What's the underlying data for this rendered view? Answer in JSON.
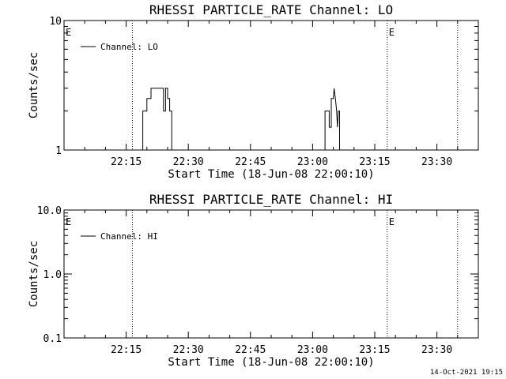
{
  "footer": {
    "timestamp": "14-Oct-2021 19:15"
  },
  "colors": {
    "background": "#ffffff",
    "foreground": "#000000"
  },
  "chart_data": [
    {
      "type": "line",
      "title": "RHESSI PARTICLE_RATE Channel: LO",
      "xlabel": "Start Time (18-Jun-08 22:00:10)",
      "ylabel": "Counts/sec",
      "yscale": "log",
      "xlim_minutes": [
        0,
        100
      ],
      "ylim": [
        1,
        10
      ],
      "xticks": [
        {
          "value": 15,
          "label": "22:15"
        },
        {
          "value": 30,
          "label": "22:30"
        },
        {
          "value": 45,
          "label": "22:45"
        },
        {
          "value": 60,
          "label": "23:00"
        },
        {
          "value": 75,
          "label": "23:15"
        },
        {
          "value": 90,
          "label": "23:30"
        }
      ],
      "yticks": [
        {
          "value": 1,
          "label": "1"
        },
        {
          "value": 10,
          "label": "10"
        }
      ],
      "vlines_minutes": [
        16.5,
        78,
        95
      ],
      "markers": [
        {
          "x_minutes": 0,
          "label": "E"
        },
        {
          "x_minutes": 78,
          "label": "E"
        }
      ],
      "legend": {
        "placement": "top-left",
        "entries": [
          "Channel: LO"
        ]
      },
      "series": [
        {
          "name": "Channel: LO",
          "segments": [
            [
              [
                19.0,
                1
              ],
              [
                19.0,
                2
              ],
              [
                20.0,
                2
              ],
              [
                20.0,
                2.5
              ],
              [
                21.0,
                2.5
              ],
              [
                21.0,
                3
              ],
              [
                24.0,
                3
              ],
              [
                24.0,
                2
              ],
              [
                24.5,
                2
              ],
              [
                24.5,
                3
              ],
              [
                25.0,
                3
              ],
              [
                25.0,
                2.5
              ],
              [
                25.5,
                2.5
              ],
              [
                25.5,
                2
              ],
              [
                26.0,
                2
              ],
              [
                26.0,
                1
              ]
            ],
            [
              [
                63.0,
                1
              ],
              [
                63.0,
                2
              ],
              [
                64.0,
                2
              ],
              [
                64.0,
                1.5
              ],
              [
                64.5,
                1.5
              ],
              [
                64.5,
                2.5
              ],
              [
                65.0,
                2.5
              ],
              [
                65.2,
                3
              ],
              [
                65.5,
                2.5
              ],
              [
                65.8,
                2.0
              ],
              [
                66.0,
                1.5
              ],
              [
                66.2,
                2
              ],
              [
                66.5,
                2
              ],
              [
                66.5,
                1
              ]
            ]
          ]
        }
      ]
    },
    {
      "type": "line",
      "title": "RHESSI PARTICLE_RATE Channel: HI",
      "xlabel": "Start Time (18-Jun-08 22:00:10)",
      "ylabel": "Counts/sec",
      "yscale": "log",
      "xlim_minutes": [
        0,
        100
      ],
      "ylim": [
        0.1,
        10
      ],
      "xticks": [
        {
          "value": 15,
          "label": "22:15"
        },
        {
          "value": 30,
          "label": "22:30"
        },
        {
          "value": 45,
          "label": "22:45"
        },
        {
          "value": 60,
          "label": "23:00"
        },
        {
          "value": 75,
          "label": "23:15"
        },
        {
          "value": 90,
          "label": "23:30"
        }
      ],
      "yticks": [
        {
          "value": 0.1,
          "label": "0.1"
        },
        {
          "value": 1.0,
          "label": "1.0"
        },
        {
          "value": 10.0,
          "label": "10.0"
        }
      ],
      "vlines_minutes": [
        16.5,
        78,
        95
      ],
      "markers": [
        {
          "x_minutes": 0,
          "label": "E"
        },
        {
          "x_minutes": 78,
          "label": "E"
        }
      ],
      "legend": {
        "placement": "top-left",
        "entries": [
          "Channel: HI"
        ]
      },
      "series": [
        {
          "name": "Channel: HI",
          "segments": []
        }
      ]
    }
  ]
}
